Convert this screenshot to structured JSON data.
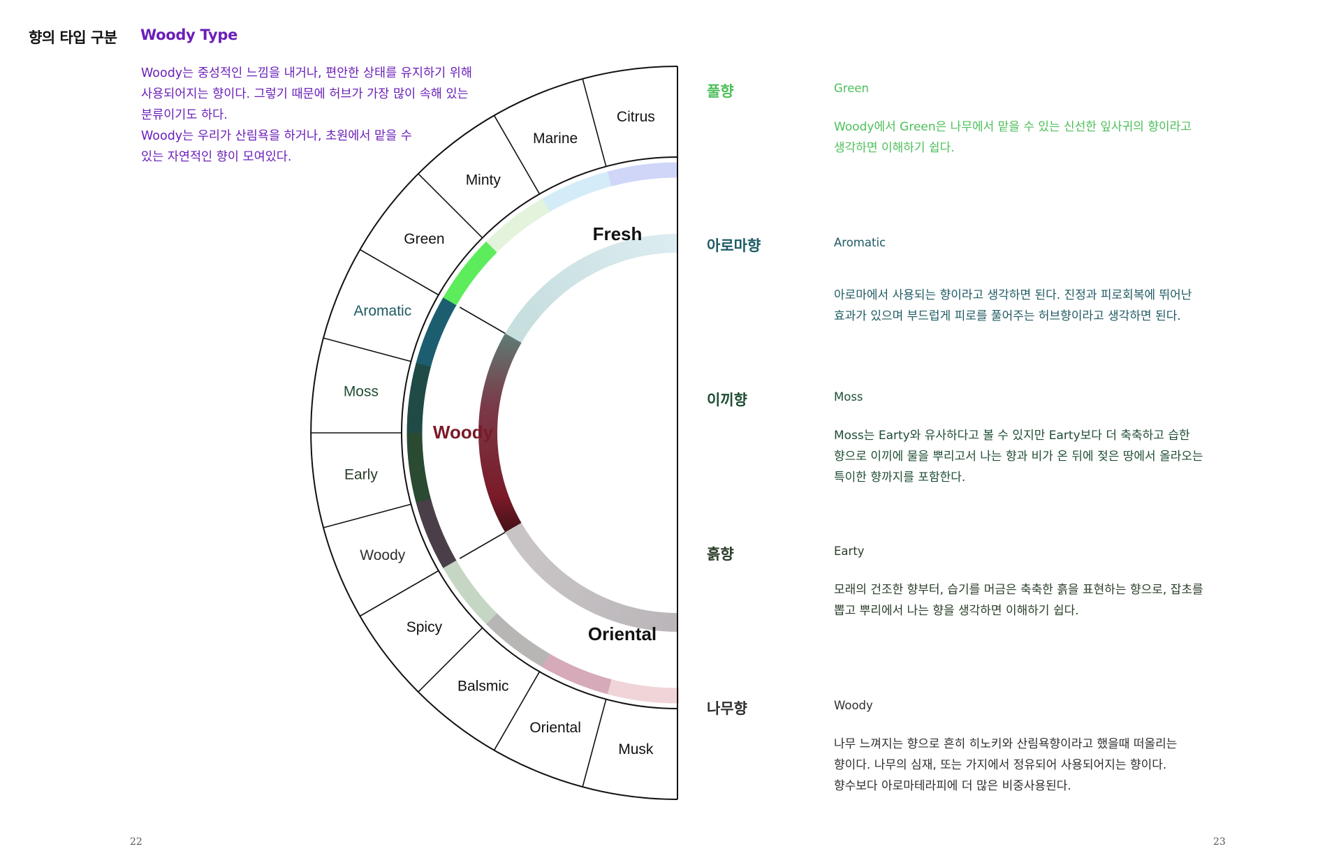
{
  "header": {
    "title": "향의 타입 구분",
    "subtitle": "Woody Type"
  },
  "intro": {
    "lines": [
      "Woody는 중성적인 느낌을 내거나, 편안한 상태를 유지하기 위해",
      "사용되어지는 향이다. 그렇기 때문에 허브가 가장 많이 속해 있는",
      "분류이기도 하다.",
      "Woody는 우리가 산림욕을 하거나, 초원에서 맡을 수",
      "있는 자연적인 향이 모여있다."
    ]
  },
  "wheel": {
    "families": [
      {
        "label": "Fresh"
      },
      {
        "label": "Woody"
      },
      {
        "label": "Oriental"
      }
    ],
    "notes": [
      {
        "label": "Citrus"
      },
      {
        "label": "Marine"
      },
      {
        "label": "Minty"
      },
      {
        "label": "Green"
      },
      {
        "label": "Aromatic"
      },
      {
        "label": "Moss"
      },
      {
        "label": "Early"
      },
      {
        "label": "Woody"
      },
      {
        "label": "Spicy"
      },
      {
        "label": "Balsmic"
      },
      {
        "label": "Oriental"
      },
      {
        "label": "Musk"
      }
    ]
  },
  "entries": [
    {
      "kor": "풀향",
      "eng": "Green",
      "color": "#4cbf5a",
      "desc": [
        "Woody에서 Green은 나무에서 맡을 수 있는 신선한 잎사귀의 향이라고",
        "생각하면 이해하기 쉽다."
      ]
    },
    {
      "kor": "아로마향",
      "eng": "Aromatic",
      "color": "#1e5a63",
      "desc": [
        "아로마에서 사용되는 향이라고 생각하면 된다. 진정과 피로회복에 뛰어난",
        "효과가 있으며 부드럽게 피로를 풀어주는 허브향이라고 생각하면 된다."
      ]
    },
    {
      "kor": "이끼향",
      "eng": "Moss",
      "color": "#1f4d33",
      "desc": [
        "Moss는 Earty와 유사하다고 볼 수 있지만 Earty보다 더 축축하고 습한",
        "향으로 이끼에 물을 뿌리고서 나는 향과 비가 온 뒤에 젖은 땅에서 올라오는",
        "특이한 향까지를 포함한다."
      ]
    },
    {
      "kor": "흙향",
      "eng": "Earty",
      "color": "#2a3d28",
      "desc": [
        "모래의 건조한 향부터, 습기를 머금은 축축한 흙을 표현하는 향으로, 잡초를",
        "뽑고 뿌리에서 나는 향을 생각하면 이해하기 쉽다."
      ]
    },
    {
      "kor": "나무향",
      "eng": "Woody",
      "color": "#2e2e2e",
      "desc": [
        "나무 느껴지는 향으로 흔히 히노키와 산림욕향이라고 했을때 떠올리는",
        "향이다. 나무의 심재, 또는 가지에서 정유되어 사용되어지는 향이다.",
        "향수보다 아로마테라피에 더 많은 비중사용된다."
      ]
    }
  ],
  "pages": {
    "left": "22",
    "right": "23"
  },
  "colors": {
    "accent_purple": "#6a1fb8",
    "woody_red": "#7a1a28"
  }
}
